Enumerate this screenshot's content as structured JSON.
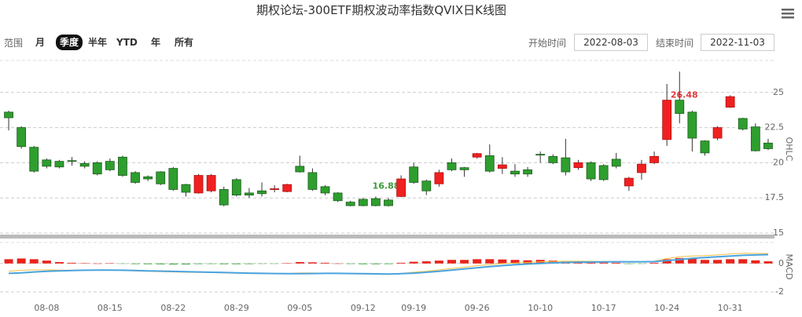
{
  "title": "期权论坛-300ETF期权波动率指数QVIX日K线图",
  "range_selector": {
    "label": "范围",
    "buttons": [
      "月",
      "季度",
      "半年",
      "YTD",
      "年",
      "所有"
    ],
    "selected": 1
  },
  "date_range": {
    "start_label": "开始时间",
    "start": "2022-08-03",
    "end_label": "结束时间",
    "end": "2022-11-03"
  },
  "chart_data": [
    {
      "type": "candlestick",
      "categories": [
        null,
        null,
        null,
        "08-08",
        null,
        null,
        null,
        null,
        "08-15",
        null,
        null,
        null,
        null,
        "08-22",
        null,
        null,
        null,
        null,
        "08-29",
        null,
        null,
        null,
        null,
        "09-05",
        null,
        null,
        null,
        null,
        "09-12",
        null,
        null,
        null,
        "09-19",
        null,
        null,
        null,
        null,
        "09-26",
        null,
        null,
        null,
        null,
        "10-10",
        null,
        null,
        null,
        null,
        "10-17",
        null,
        null,
        null,
        null,
        "10-24",
        null,
        null,
        null,
        null,
        "10-31",
        null,
        null,
        null
      ],
      "open": [
        23.6,
        22.5,
        21.1,
        20.2,
        20.1,
        20.15,
        19.95,
        20.0,
        20.1,
        20.4,
        19.3,
        19.0,
        19.35,
        19.6,
        18.45,
        17.85,
        18.0,
        18.1,
        18.8,
        17.85,
        18.0,
        18.1,
        17.95,
        19.75,
        19.3,
        18.3,
        17.85,
        17.2,
        17.4,
        17.45,
        17.35,
        17.6,
        19.7,
        18.7,
        18.5,
        20.0,
        19.65,
        20.4,
        20.5,
        19.6,
        19.4,
        19.5,
        20.6,
        20.45,
        20.35,
        19.65,
        20.0,
        19.8,
        20.25,
        18.35,
        19.3,
        20.0,
        21.65,
        24.45,
        23.6,
        21.55,
        21.75,
        23.95,
        23.15,
        22.55,
        21.4
      ],
      "high": [
        23.7,
        22.6,
        21.2,
        20.3,
        20.2,
        20.4,
        20.1,
        20.1,
        20.3,
        20.5,
        19.4,
        19.1,
        19.4,
        19.7,
        18.5,
        19.2,
        19.2,
        18.3,
        18.9,
        18.2,
        18.6,
        18.4,
        18.5,
        20.5,
        19.6,
        18.4,
        17.9,
        17.3,
        17.5,
        17.6,
        17.5,
        19.1,
        20.0,
        18.8,
        19.5,
        20.3,
        19.7,
        20.7,
        21.3,
        20.4,
        19.9,
        19.7,
        20.8,
        20.6,
        21.7,
        20.2,
        20.1,
        19.9,
        20.7,
        19.0,
        20.2,
        20.8,
        25.6,
        26.48,
        23.7,
        21.6,
        22.6,
        24.8,
        23.2,
        22.8,
        21.7
      ],
      "low": [
        22.3,
        21.0,
        19.3,
        19.6,
        19.6,
        19.8,
        19.6,
        19.1,
        19.4,
        19.0,
        18.5,
        18.7,
        18.4,
        18.0,
        17.6,
        17.8,
        17.9,
        16.9,
        17.6,
        17.5,
        17.6,
        17.9,
        17.9,
        19.3,
        18.0,
        17.7,
        17.2,
        16.9,
        16.9,
        16.9,
        16.88,
        17.55,
        18.5,
        17.7,
        18.3,
        19.4,
        19.0,
        20.3,
        19.3,
        19.2,
        19.0,
        19.0,
        20.0,
        19.9,
        19.1,
        19.5,
        18.7,
        18.7,
        19.6,
        18.0,
        18.8,
        19.9,
        21.2,
        22.8,
        20.8,
        20.5,
        21.6,
        23.9,
        22.3,
        20.8,
        20.9
      ],
      "close": [
        23.2,
        21.15,
        19.4,
        19.75,
        19.7,
        20.1,
        19.75,
        19.2,
        19.5,
        19.1,
        18.6,
        18.85,
        18.5,
        18.1,
        17.9,
        19.1,
        19.1,
        17.0,
        17.7,
        17.7,
        17.8,
        18.15,
        18.45,
        19.35,
        18.1,
        17.85,
        17.3,
        16.95,
        16.95,
        16.95,
        16.95,
        18.85,
        18.6,
        18.0,
        19.3,
        19.5,
        19.5,
        20.65,
        19.4,
        19.85,
        19.2,
        19.2,
        20.55,
        20.0,
        19.35,
        20.0,
        18.85,
        18.8,
        19.75,
        18.9,
        19.9,
        20.45,
        24.45,
        23.5,
        21.75,
        20.7,
        22.5,
        24.7,
        22.4,
        20.85,
        21.0
      ],
      "up_color": "#f02020",
      "down_color": "#2e9e2e",
      "ylim": [
        15,
        27.5
      ],
      "yticks": [
        15,
        17.5,
        20,
        22.5,
        25
      ],
      "y_label": "OHLC",
      "grid": true,
      "annotations": [
        {
          "value": 26.48,
          "color": "#e03c3c"
        },
        {
          "value": 16.88,
          "color": "#3a9a3a"
        }
      ]
    },
    {
      "type": "macd",
      "bars": [
        0.3,
        0.35,
        0.3,
        0.2,
        0.1,
        0.05,
        0.02,
        0.0,
        0.01,
        -0.02,
        -0.05,
        -0.06,
        -0.07,
        -0.08,
        -0.08,
        -0.05,
        -0.04,
        -0.06,
        -0.06,
        -0.05,
        -0.03,
        -0.02,
        0.02,
        0.1,
        0.08,
        0.05,
        0.0,
        -0.04,
        -0.06,
        -0.06,
        -0.05,
        0.05,
        0.12,
        0.15,
        0.2,
        0.25,
        0.25,
        0.3,
        0.3,
        0.28,
        0.25,
        0.22,
        0.25,
        0.2,
        0.15,
        0.15,
        0.1,
        0.06,
        0.05,
        -0.04,
        -0.02,
        0.05,
        0.3,
        0.38,
        0.35,
        0.25,
        0.25,
        0.3,
        0.3,
        0.22,
        0.15
      ],
      "series": [
        {
          "color": "#f5c040",
          "values": [
            -0.55,
            -0.48,
            -0.45,
            -0.45,
            -0.47,
            -0.48,
            -0.47,
            -0.47,
            -0.46,
            -0.49,
            -0.53,
            -0.55,
            -0.58,
            -0.6,
            -0.62,
            -0.63,
            -0.64,
            -0.67,
            -0.69,
            -0.71,
            -0.72,
            -0.72,
            -0.71,
            -0.67,
            -0.67,
            -0.68,
            -0.7,
            -0.73,
            -0.75,
            -0.76,
            -0.77,
            -0.7,
            -0.62,
            -0.55,
            -0.45,
            -0.35,
            -0.27,
            -0.15,
            -0.08,
            -0.01,
            0.03,
            0.07,
            0.12,
            0.14,
            0.15,
            0.16,
            0.15,
            0.14,
            0.14,
            0.1,
            0.11,
            0.15,
            0.35,
            0.47,
            0.53,
            0.55,
            0.6,
            0.67,
            0.72,
            0.71,
            0.7
          ]
        },
        {
          "color": "#4aa3df",
          "values": [
            -0.7,
            -0.66,
            -0.6,
            -0.55,
            -0.52,
            -0.5,
            -0.48,
            -0.47,
            -0.47,
            -0.48,
            -0.5,
            -0.52,
            -0.54,
            -0.56,
            -0.58,
            -0.6,
            -0.62,
            -0.64,
            -0.66,
            -0.68,
            -0.7,
            -0.71,
            -0.72,
            -0.72,
            -0.71,
            -0.7,
            -0.7,
            -0.71,
            -0.72,
            -0.73,
            -0.74,
            -0.72,
            -0.68,
            -0.62,
            -0.55,
            -0.47,
            -0.39,
            -0.3,
            -0.22,
            -0.15,
            -0.09,
            -0.04,
            0.0,
            0.04,
            0.07,
            0.09,
            0.1,
            0.11,
            0.12,
            0.12,
            0.12,
            0.13,
            0.2,
            0.28,
            0.36,
            0.42,
            0.47,
            0.52,
            0.57,
            0.6,
            0.62
          ]
        }
      ],
      "up_color": "#e8231b",
      "down_color": "#5cb85c",
      "ylim": [
        -2.5,
        1.7
      ],
      "yticks": [
        -2,
        0
      ],
      "y_label": "MACD",
      "grid": true
    }
  ]
}
